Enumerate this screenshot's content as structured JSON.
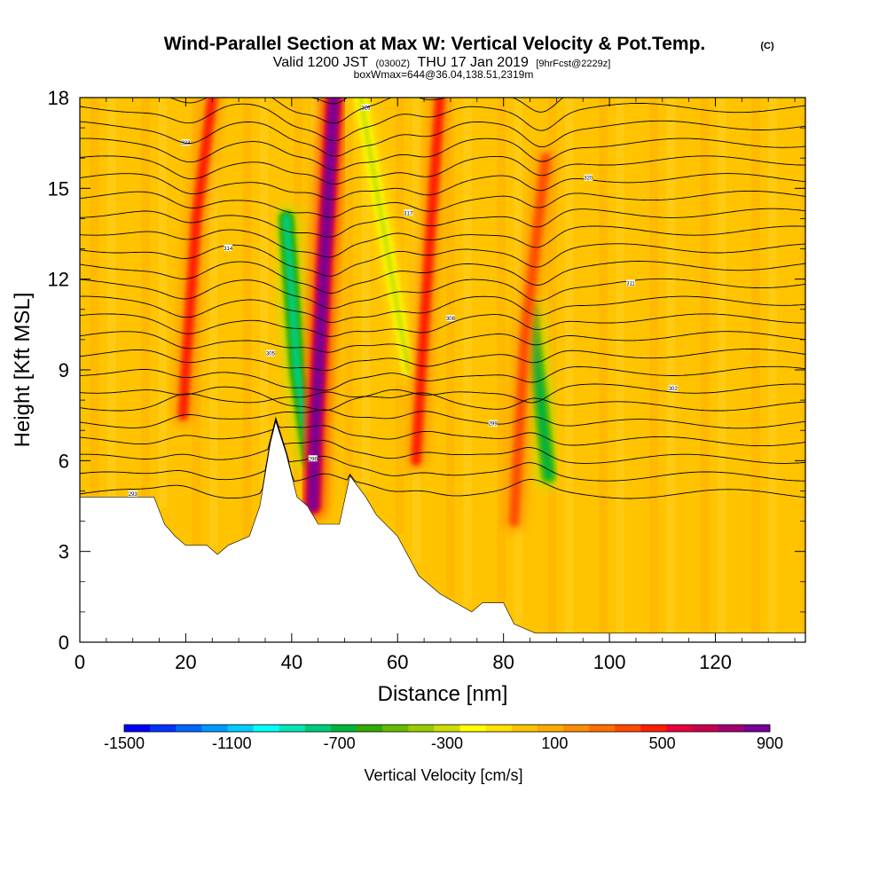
{
  "title": {
    "main": "Wind-Parallel Section at Max W: Vertical Velocity & Pot.Temp.",
    "copyright": "(C)",
    "valid_prefix": "Valid 1200 JST",
    "valid_utc": "(0300Z)",
    "valid_date": "THU 17 Jan 2019",
    "forecast": "[9hrFcst@2229z]",
    "box_info": "boxWmax=644@36.04,138.51,2319m"
  },
  "colors": {
    "background": "#ffffff",
    "base_fill": "#ffc300",
    "terrain": "#ffffff",
    "contour": "#000000"
  },
  "chart_data": {
    "type": "heatmap",
    "xlabel": "Distance [nm]",
    "ylabel": "Height [Kft MSL]",
    "xlim": [
      0,
      137
    ],
    "ylim": [
      0,
      18
    ],
    "x_ticks": [
      0,
      20,
      40,
      60,
      80,
      100,
      120
    ],
    "y_ticks": [
      0,
      3,
      6,
      9,
      12,
      15,
      18
    ],
    "grid": false,
    "terrain_profile": [
      [
        0,
        4.8
      ],
      [
        14,
        4.8
      ],
      [
        16,
        3.9
      ],
      [
        18,
        3.5
      ],
      [
        20,
        3.2
      ],
      [
        24,
        3.2
      ],
      [
        26,
        2.9
      ],
      [
        28,
        3.2
      ],
      [
        32,
        3.5
      ],
      [
        34,
        4.5
      ],
      [
        36,
        6.6
      ],
      [
        37,
        7.3
      ],
      [
        39,
        6.2
      ],
      [
        41,
        4.8
      ],
      [
        43,
        4.5
      ],
      [
        45,
        3.9
      ],
      [
        49,
        3.9
      ],
      [
        51,
        5.5
      ],
      [
        54,
        4.8
      ],
      [
        56,
        4.2
      ],
      [
        60,
        3.5
      ],
      [
        64,
        2.2
      ],
      [
        68,
        1.6
      ],
      [
        72,
        1.2
      ],
      [
        74,
        1.0
      ],
      [
        76,
        1.3
      ],
      [
        80,
        1.3
      ],
      [
        82,
        0.6
      ],
      [
        86,
        0.3
      ],
      [
        137,
        0.3
      ]
    ],
    "colorbar": {
      "title": "Vertical Velocity [cm/s]",
      "min": -1500,
      "max": 900,
      "step": 100,
      "tick_labels": [
        "-1500",
        "-1100",
        "-700",
        "-300",
        "100",
        "500",
        "900"
      ],
      "colors": [
        "#0000ff",
        "#0033ff",
        "#0066ff",
        "#0099ff",
        "#00ccff",
        "#00ffff",
        "#00e6b4",
        "#00cc78",
        "#00b43c",
        "#33aa00",
        "#66bb00",
        "#99cc00",
        "#ccdd00",
        "#ffff00",
        "#ffe100",
        "#ffc300",
        "#ffaa00",
        "#ff8c00",
        "#ff6e00",
        "#ff4b00",
        "#ff1e00",
        "#e6003c",
        "#c80050",
        "#a0006e",
        "#780096"
      ]
    },
    "series": [
      {
        "x": [
          25,
          22,
          20,
          19.5
        ],
        "y": [
          18,
          14,
          9,
          7.5
        ],
        "value": 450
      },
      {
        "x": [
          39,
          41,
          43.5
        ],
        "y": [
          14,
          9,
          6
        ],
        "value": -750
      },
      {
        "x": [
          48,
          46,
          44.5,
          44
        ],
        "y": [
          18,
          12,
          7,
          4.5
        ],
        "value": 900
      },
      {
        "x": [
          53,
          58,
          62
        ],
        "y": [
          18,
          13,
          9
        ],
        "value": -300
      },
      {
        "x": [
          68,
          66,
          64.5,
          63.5
        ],
        "y": [
          18,
          13,
          9,
          6
        ],
        "value": 500
      },
      {
        "x": [
          85,
          87,
          88.5
        ],
        "y": [
          11,
          8,
          5.5
        ],
        "value": -650
      },
      {
        "x": [
          88,
          84,
          82
        ],
        "y": [
          16,
          10,
          4
        ],
        "value": 350
      }
    ],
    "contour_labels": [
      "293",
      "296",
      "299",
      "302",
      "305",
      "308",
      "311",
      "314",
      "317",
      "320",
      "323",
      "326"
    ]
  }
}
